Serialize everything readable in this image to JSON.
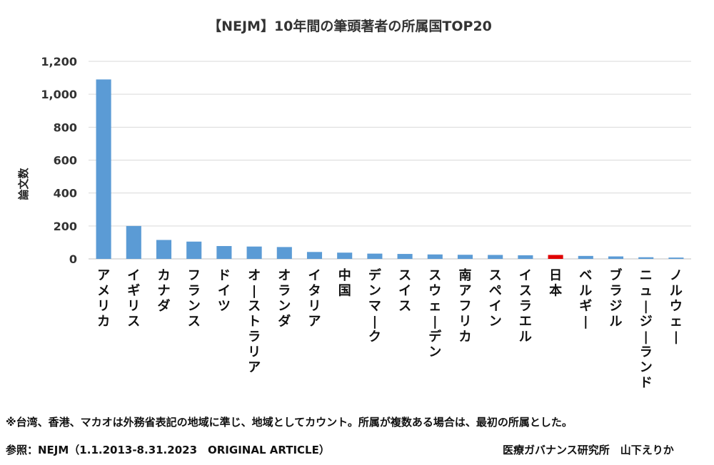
{
  "chart_data": {
    "type": "bar",
    "title": "【NEJM】10年間の筆頭著者の所属国TOP20",
    "ylabel": "論文数",
    "xlabel": "",
    "ylim": [
      0,
      1200
    ],
    "yticks": [
      0,
      200,
      400,
      600,
      800,
      1000,
      1200
    ],
    "ytick_labels": [
      "0",
      "200",
      "400",
      "600",
      "800",
      "1,000",
      "1,200"
    ],
    "grid": true,
    "categories": [
      "アメリカ",
      "イギリス",
      "カナダ",
      "フランス",
      "ドイツ",
      "オーストラリア",
      "オランダ",
      "イタリア",
      "中国",
      "デンマーク",
      "スイス",
      "スウェーデン",
      "南アフリカ",
      "スペイン",
      "イスラエル",
      "日本",
      "ベルギー",
      "ブラジル",
      "ニュージーランド",
      "ノルウェー"
    ],
    "values": [
      1090,
      200,
      115,
      105,
      78,
      75,
      72,
      42,
      38,
      32,
      30,
      27,
      25,
      24,
      22,
      24,
      18,
      15,
      10,
      8
    ],
    "colors": {
      "default": "#5b9bd5",
      "highlight": "#e00000",
      "highlight_category": "日本"
    }
  },
  "footer": {
    "note": "※台湾、香港、マカオは外務省表記の地域に準じ、地域としてカウント。所属が複数ある場合は、最初の所属とした。",
    "source": "参照：NEJM（1.1.2013-8.31.2023　ORIGINAL ARTICLE）",
    "credit": "医療ガバナンス研究所　山下えりか"
  }
}
